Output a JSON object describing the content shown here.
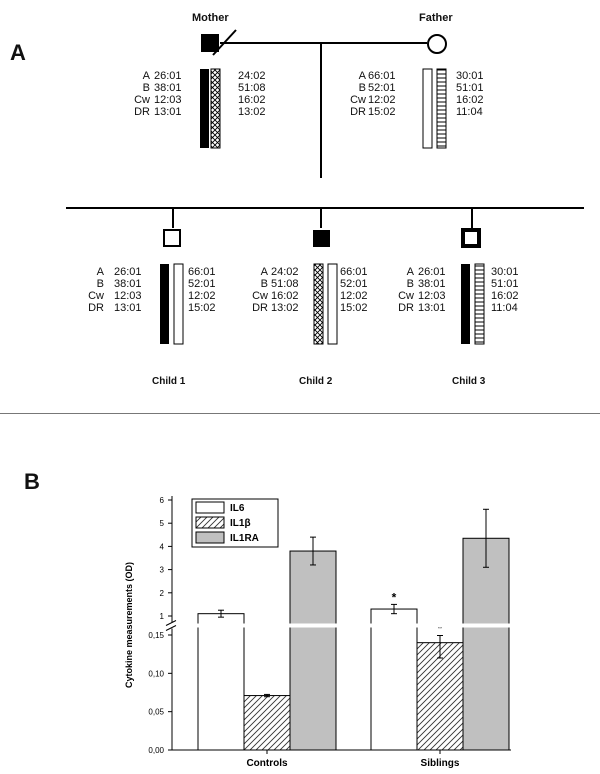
{
  "panel_a": {
    "label": "A",
    "loci": [
      "A",
      "B",
      "Cw",
      "DR"
    ],
    "mother": {
      "label": "Mother",
      "hap1": [
        "26:01",
        "38:01",
        "12:03",
        "13:01"
      ],
      "hap2": [
        "24:02",
        "51:08",
        "16:02",
        "13:02"
      ]
    },
    "father": {
      "label": "Father",
      "hap1": [
        "66:01",
        "52:01",
        "12:02",
        "15:02"
      ],
      "hap2": [
        "30:01",
        "51:01",
        "16:02",
        "11:04"
      ]
    },
    "children": [
      {
        "label": "Child 1",
        "hap1": [
          "26:01",
          "38:01",
          "12:03",
          "13:01"
        ],
        "hap2": [
          "66:01",
          "52:01",
          "12:02",
          "15:02"
        ]
      },
      {
        "label": "Child 2",
        "hap1": [
          "24:02",
          "51:08",
          "16:02",
          "13:02"
        ],
        "hap2": [
          "66:01",
          "52:01",
          "12:02",
          "15:02"
        ]
      },
      {
        "label": "Child 3",
        "hap1": [
          "26:01",
          "38:01",
          "12:03",
          "13:01"
        ],
        "hap2": [
          "30:01",
          "51:01",
          "16:02",
          "11:04"
        ]
      }
    ]
  },
  "panel_b": {
    "label": "B"
  },
  "chart_data": {
    "type": "bar",
    "ylabel": "Cytokine measurements (OD)",
    "categories": [
      "Controls",
      "Siblings"
    ],
    "series": [
      {
        "name": "IL6",
        "values": [
          1.1,
          1.3
        ],
        "errors": [
          0.15,
          0.2
        ],
        "significant": [
          false,
          true
        ],
        "color": "#ffffff",
        "pattern": "none"
      },
      {
        "name": "IL1β",
        "values": [
          0.071,
          0.14
        ],
        "errors": [
          0.0015,
          0.02
        ],
        "significant": [
          false,
          true
        ],
        "color": "#ffffff",
        "pattern": "diagonal-hatch"
      },
      {
        "name": "IL1RA",
        "values": [
          3.8,
          4.35
        ],
        "errors": [
          0.6,
          1.25
        ],
        "significant": [
          false,
          false
        ],
        "color": "#c0c0c0",
        "pattern": "none"
      }
    ],
    "axis_break": [
      0.15,
      1
    ],
    "yticks_lower": [
      "0,00",
      "0,05",
      "0,10",
      "0,15"
    ],
    "yticks_upper": [
      "1",
      "2",
      "3",
      "4",
      "5",
      "6"
    ],
    "ylim_lower": [
      0,
      0.15
    ],
    "ylim_upper": [
      1,
      6
    ],
    "significance_marker": "*",
    "legend_position": "top-left"
  }
}
